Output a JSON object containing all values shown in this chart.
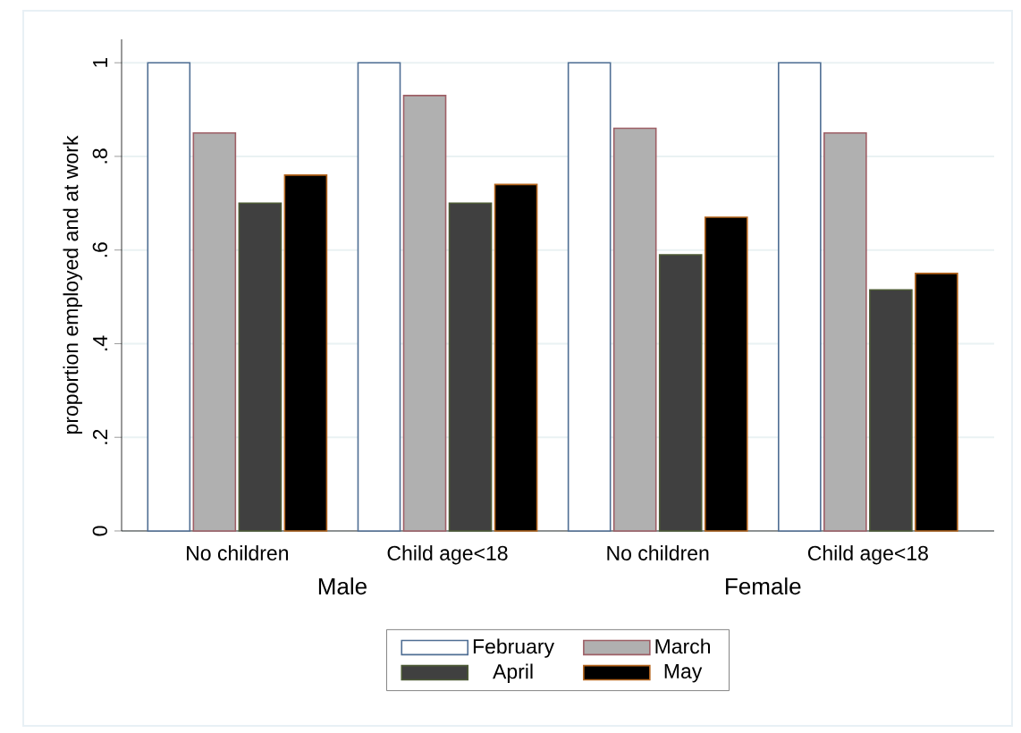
{
  "chart_data": {
    "type": "bar",
    "ylabel": "proportion employed and at work",
    "categories": [
      "No children",
      "Child age<18",
      "No children",
      "Child age<18"
    ],
    "series": [
      {
        "name": "February",
        "color": "#ffffff",
        "values": [
          1,
          1,
          1,
          1
        ]
      },
      {
        "name": "March",
        "color": "#b0b0b0",
        "values": [
          0.85,
          0.93,
          0.86,
          0.85
        ]
      },
      {
        "name": "April",
        "color": "#404040",
        "values": [
          0.7,
          0.7,
          0.59,
          0.515
        ]
      },
      {
        "name": "May",
        "color": "#000000",
        "values": [
          0.76,
          0.74,
          0.67,
          0.55
        ]
      }
    ],
    "annotations": [
      "Male",
      "Female"
    ],
    "ylim": [
      0,
      1.05
    ],
    "yticks": [
      0,
      {
        "value": 0.2,
        "label": ".2"
      },
      {
        "value": 0.4,
        "label": ".4"
      },
      {
        "value": 0.6,
        "label": ".6"
      },
      {
        "value": 0.8,
        "label": ".8"
      },
      1
    ],
    "grid": "y",
    "legend": "bottom"
  }
}
